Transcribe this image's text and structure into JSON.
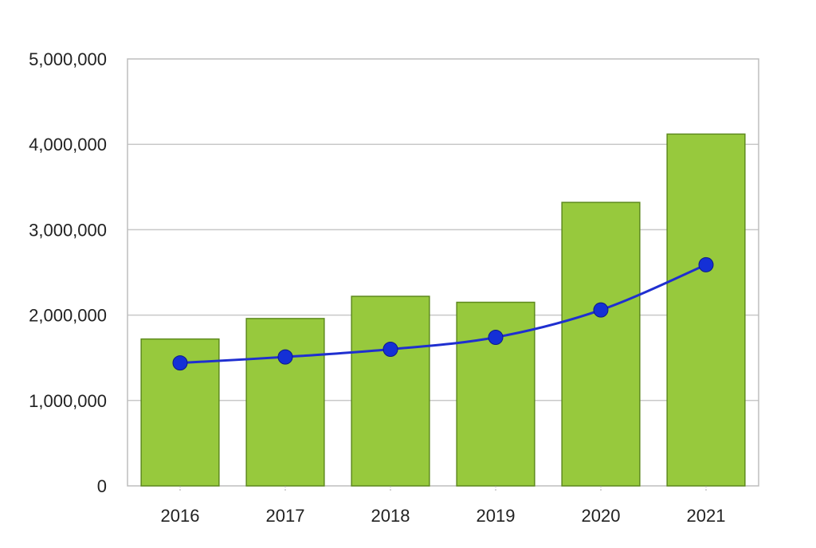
{
  "chart_data": {
    "type": "bar",
    "categories": [
      "2016",
      "2017",
      "2018",
      "2019",
      "2020",
      "2021"
    ],
    "series": [
      {
        "kind": "bar",
        "values": [
          1720000,
          1960000,
          2220000,
          2150000,
          3320000,
          4120000
        ]
      },
      {
        "kind": "line",
        "values": [
          1440000,
          1510000,
          1600000,
          1740000,
          2060000,
          2590000
        ]
      }
    ],
    "ylim": [
      0,
      5000000
    ],
    "yticks": [
      0,
      1000000,
      2000000,
      3000000,
      4000000,
      5000000
    ],
    "ytick_labels": [
      "0",
      "1,000,000",
      "2,000,000",
      "3,000,000",
      "4,000,000",
      "5,000,000"
    ],
    "grid": true,
    "legend": "none",
    "colors": {
      "bar_fill": "#97c93d",
      "bar_stroke": "#5e8a1e",
      "line": "#1f2fd0",
      "marker": "#1430d6",
      "grid": "#c8c8c8",
      "frame": "#bdbdbd"
    }
  }
}
